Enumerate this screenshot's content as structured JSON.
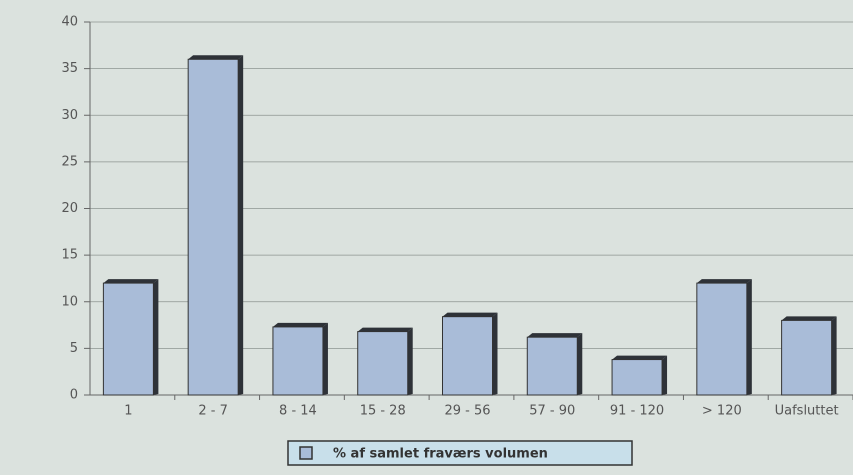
{
  "chart_data": {
    "type": "bar",
    "categories": [
      "1",
      "2 - 7",
      "8 - 14",
      "15 - 28",
      "29 - 56",
      "57 - 90",
      "91 - 120",
      "> 120",
      "Uafsluttet"
    ],
    "series": [
      {
        "name": "% af samlet fraværs volumen",
        "color": "#a9bcd8",
        "values": [
          12,
          36,
          7.3,
          6.8,
          8.4,
          6.2,
          3.8,
          12,
          8
        ]
      }
    ],
    "ylim": [
      0,
      40
    ],
    "yticks": [
      0,
      5,
      10,
      15,
      20,
      25,
      30,
      35,
      40
    ],
    "grid": true,
    "legend": "bottom"
  }
}
